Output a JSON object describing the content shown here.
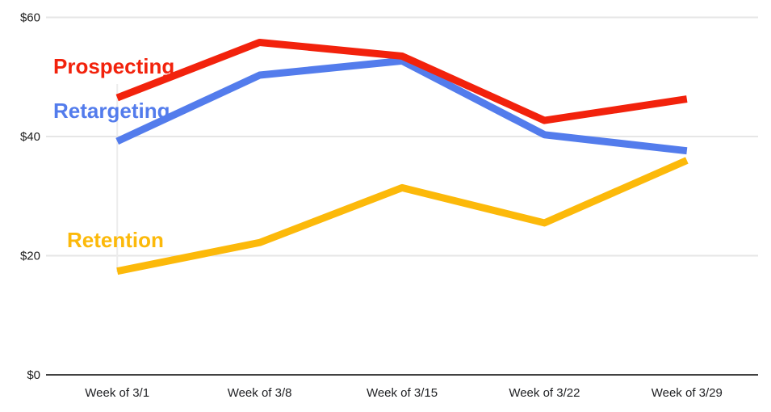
{
  "chart_data": {
    "type": "line",
    "title": "",
    "xlabel": "",
    "ylabel": "",
    "currency_prefix": "$",
    "ylim": [
      0,
      60
    ],
    "grid": "horizontal-only",
    "legend_position": "inline-labels-on-plot",
    "x_categories": [
      "Week of 3/1",
      "Week of 3/8",
      "Week of 3/15",
      "Week of 3/22",
      "Week of 3/29"
    ],
    "y_ticks": [
      {
        "label": "$60",
        "value": 60
      },
      {
        "label": "$40",
        "value": 40
      },
      {
        "label": "$20",
        "value": 20
      },
      {
        "label": "$0",
        "value": 0
      }
    ],
    "series": [
      {
        "name": "Retention",
        "color": "#FCB90A",
        "values": [
          17.4,
          22.2,
          31.4,
          25.5,
          36.0
        ]
      },
      {
        "name": "Retargeting",
        "color": "#537CEC",
        "values": [
          39.2,
          50.3,
          52.7,
          40.3,
          37.6
        ]
      },
      {
        "name": "Prospecting",
        "color": "#F2220C",
        "values": [
          46.5,
          55.8,
          53.5,
          42.7,
          46.3
        ]
      }
    ]
  },
  "labels": {
    "prospecting": "Prospecting",
    "retargeting": "Retargeting",
    "retention": "Retention"
  },
  "colors": {
    "prospecting": "#F2220C",
    "retargeting": "#537CEC",
    "retention": "#FCB90A",
    "gridline": "#E6E6E6",
    "axis_line": "#424242",
    "tick_text": "#1d1d1d",
    "first_point_guide": "#ECECEC"
  }
}
